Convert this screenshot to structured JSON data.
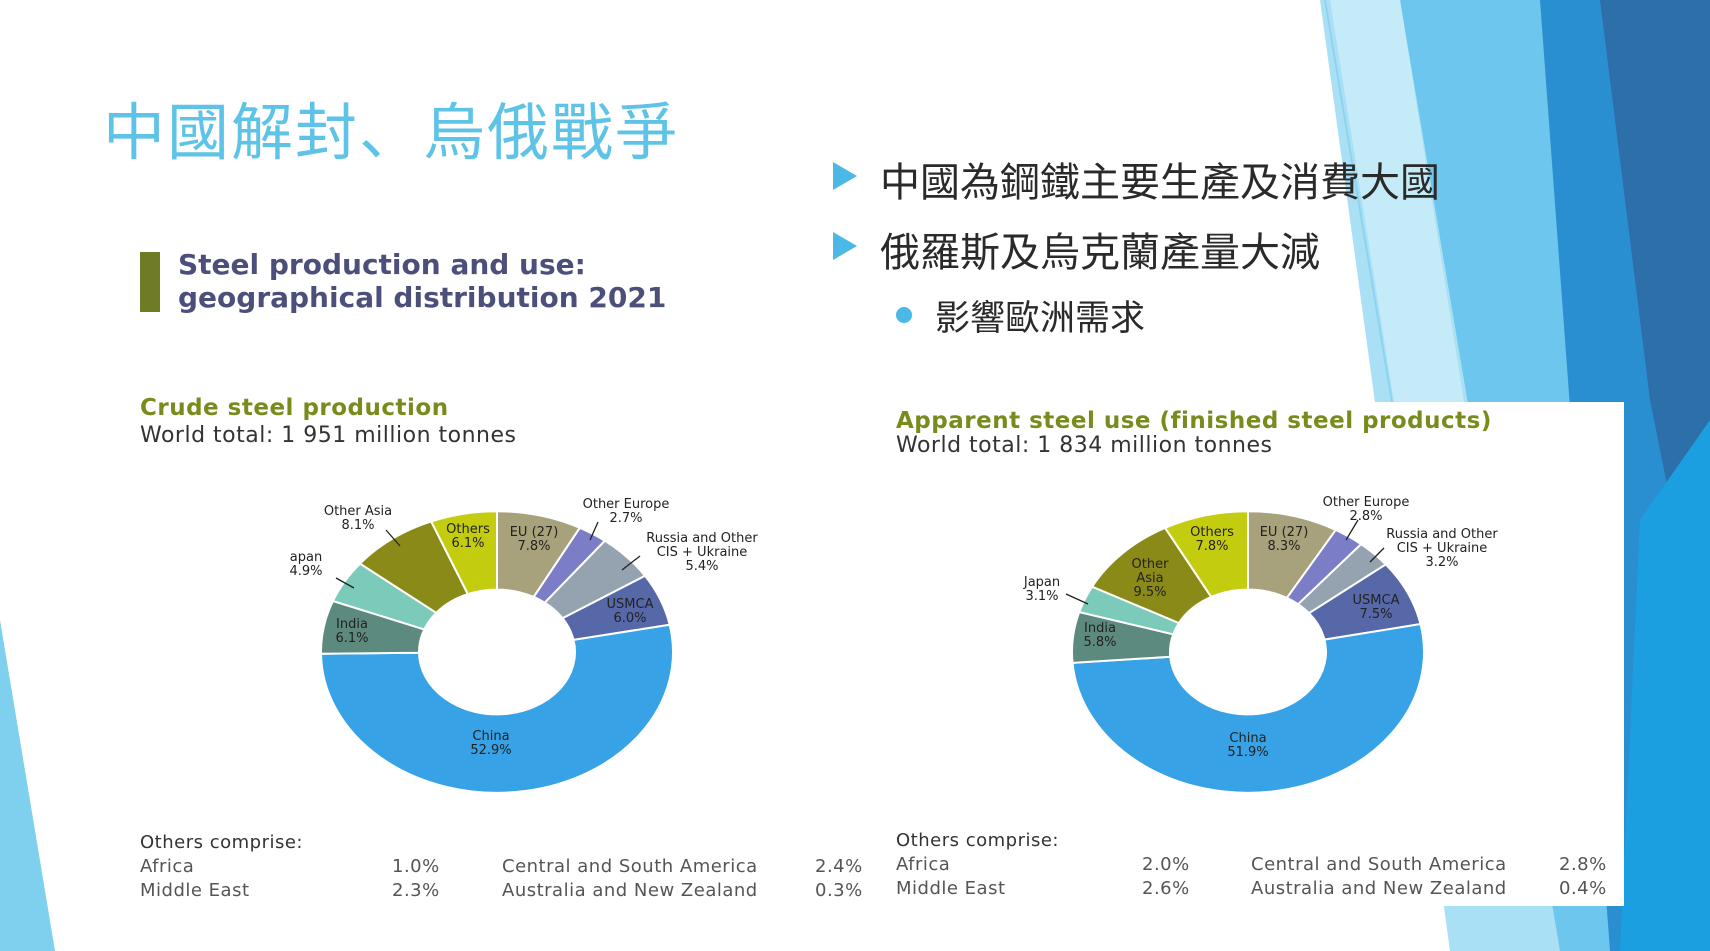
{
  "slide": {
    "title": "中國解封、烏俄戰爭",
    "bullets": [
      {
        "level": 1,
        "text": "中國為鋼鐵主要生產及消費大國"
      },
      {
        "level": 1,
        "text": "俄羅斯及烏克蘭產量大減"
      },
      {
        "level": 2,
        "text": "影響歐洲需求"
      }
    ],
    "colors": {
      "title": "#5fc3e8",
      "bullet_marker": "#4cb8e6",
      "heading_bar": "#6f7c25"
    }
  },
  "figure": {
    "heading_line1": "Steel production and use:",
    "heading_line2": "geographical distribution 2021"
  },
  "chart_data": [
    {
      "type": "pie",
      "donut": true,
      "title": "Crude steel production",
      "subtitle": "World total: 1 951 million tonnes",
      "slices": [
        {
          "label": "EU (27)",
          "value": 7.8,
          "display": "7.8%",
          "color": "#a8a27c"
        },
        {
          "label": "Other Europe",
          "value": 2.7,
          "display": "2.7%",
          "color": "#7b7ec6"
        },
        {
          "label": "Russia and Other CIS + Ukraine",
          "value": 5.4,
          "display": "5.4%",
          "color": "#95a2b0"
        },
        {
          "label": "USMCA",
          "value": 6.0,
          "display": "6.0%",
          "color": "#5668a8"
        },
        {
          "label": "China",
          "value": 52.9,
          "display": "52.9%",
          "color": "#37a2e6"
        },
        {
          "label": "India",
          "value": 6.1,
          "display": "6.1%",
          "color": "#5d8a7e"
        },
        {
          "label": "Japan",
          "value": 4.9,
          "display": "4.9%",
          "color": "#7ccab9"
        },
        {
          "label": "Other Asia",
          "value": 8.1,
          "display": "8.1%",
          "color": "#8a8a18"
        },
        {
          "label": "Others",
          "value": 6.1,
          "display": "6.1%",
          "color": "#c4cc10"
        }
      ],
      "others_comprise": {
        "heading": "Others comprise:",
        "items": [
          {
            "label": "Africa",
            "value": "1.0%"
          },
          {
            "label": "Middle East",
            "value": "2.3%"
          },
          {
            "label": "Central and South America",
            "value": "2.4%"
          },
          {
            "label": "Australia and New Zealand",
            "value": "0.3%"
          }
        ]
      }
    },
    {
      "type": "pie",
      "donut": true,
      "title": "Apparent steel use (finished steel products)",
      "subtitle": "World total: 1 834 million tonnes",
      "slices": [
        {
          "label": "EU (27)",
          "value": 8.3,
          "display": "8.3%",
          "color": "#a8a27c"
        },
        {
          "label": "Other Europe",
          "value": 2.8,
          "display": "2.8%",
          "color": "#7b7ec6"
        },
        {
          "label": "Russia and Other CIS + Ukraine",
          "value": 3.2,
          "display": "3.2%",
          "color": "#95a2b0"
        },
        {
          "label": "USMCA",
          "value": 7.5,
          "display": "7.5%",
          "color": "#5668a8"
        },
        {
          "label": "China",
          "value": 51.9,
          "display": "51.9%",
          "color": "#37a2e6"
        },
        {
          "label": "India",
          "value": 5.8,
          "display": "5.8%",
          "color": "#5d8a7e"
        },
        {
          "label": "Japan",
          "value": 3.1,
          "display": "3.1%",
          "color": "#7ccab9"
        },
        {
          "label": "Other Asia",
          "value": 9.5,
          "display": "9.5%",
          "color": "#8a8a18"
        },
        {
          "label": "Others",
          "value": 7.8,
          "display": "7.8%",
          "color": "#c4cc10"
        }
      ],
      "others_comprise": {
        "heading": "Others comprise:",
        "items": [
          {
            "label": "Africa",
            "value": "2.0%"
          },
          {
            "label": "Middle East",
            "value": "2.6%"
          },
          {
            "label": "Central and South America",
            "value": "2.8%"
          },
          {
            "label": "Australia and New Zealand",
            "value": "0.4%"
          }
        ]
      }
    }
  ]
}
